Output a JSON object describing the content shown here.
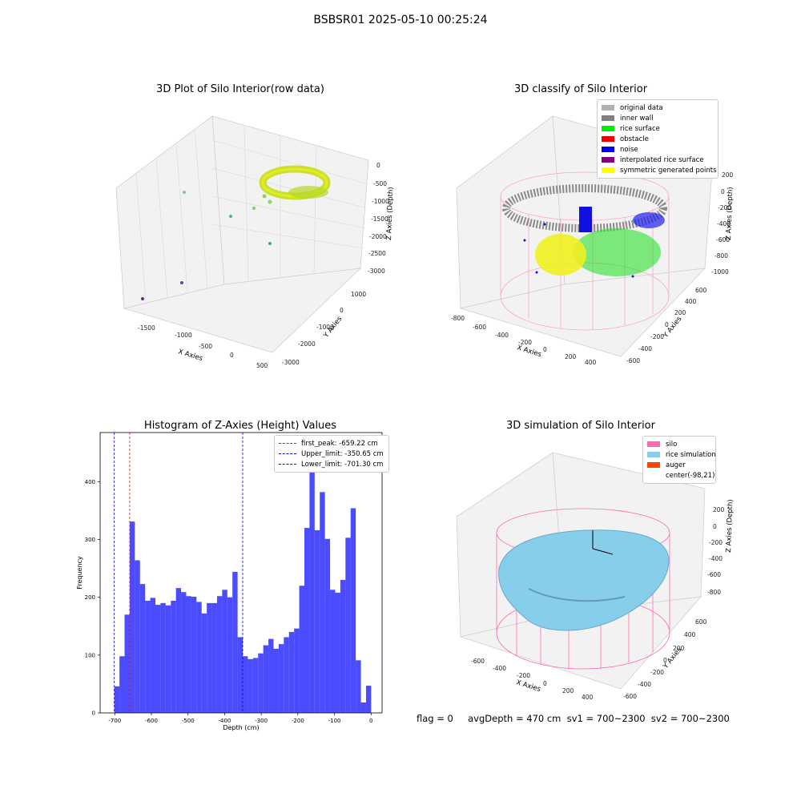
{
  "suptitle": "BSBSR01 2025-05-10 00:25:24",
  "panels": {
    "raw": {
      "title": "3D Plot of Silo Interior(row data)",
      "xlabel": "X Axies",
      "ylabel": "Y Axies",
      "zlabel": "Z Axies (Depth)",
      "xticks": [
        "-1500",
        "-1000",
        "-500",
        "0",
        "500"
      ],
      "yticks": [
        "1000",
        "0",
        "-1000",
        "-2000",
        "-3000"
      ],
      "zticks": [
        "0",
        "-500",
        "-1000",
        "-1500",
        "-2000",
        "-2500",
        "-3000"
      ]
    },
    "classify": {
      "title": "3D classify of Silo Interior",
      "xlabel": "X Axies",
      "ylabel": "Y Axies",
      "zlabel": "Z Axies (Depth)",
      "xticks": [
        "-800",
        "-600",
        "-400",
        "-200",
        "0",
        "200",
        "400"
      ],
      "yticks": [
        "600",
        "400",
        "200",
        "0",
        "-200",
        "-400",
        "-600"
      ],
      "zticks": [
        "200",
        "0",
        "-200",
        "-400",
        "-600",
        "-800",
        "-1000"
      ],
      "legend": [
        {
          "label": "original data",
          "color": "#b0b0b0"
        },
        {
          "label": "inner wall",
          "color": "#808080"
        },
        {
          "label": "rice surface",
          "color": "#00ee00"
        },
        {
          "label": "obstacle",
          "color": "#ee0000"
        },
        {
          "label": "noise",
          "color": "#0000ee"
        },
        {
          "label": "interpolated rice surface",
          "color": "#800080"
        },
        {
          "label": "symmetric generated points",
          "color": "#ffff00"
        }
      ]
    },
    "histogram": {
      "title": "Histogram of Z-Axies (Height) Values",
      "legend": [
        {
          "label": "first_peak: -659.22 cm",
          "color": "#ff0000"
        },
        {
          "label": "Upper_limit: -350.65 cm",
          "color": "#0000cc"
        },
        {
          "label": "Lower_limit: -701.30 cm",
          "color": "#0000cc"
        }
      ]
    },
    "simulation": {
      "title": "3D simulation of Silo Interior",
      "xlabel": "X Axies",
      "ylabel": "Y Axies",
      "zlabel": "Z Axies (Depth)",
      "xticks": [
        "-600",
        "-400",
        "-200",
        "0",
        "200",
        "400"
      ],
      "yticks": [
        "600",
        "400",
        "200",
        "0",
        "-200",
        "-400",
        "-600"
      ],
      "zticks": [
        "200",
        "0",
        "-200",
        "-400",
        "-600",
        "-800"
      ],
      "legend": [
        {
          "label": "silo",
          "color": "#ff69b4"
        },
        {
          "label": "rice simulation",
          "color": "#87ceeb"
        },
        {
          "label": "auger",
          "color": "#ff4500"
        },
        {
          "label": "center(-98,21)",
          "color": ""
        }
      ]
    }
  },
  "footer": "flag = 0     avgDepth = 470 cm  sv1 = 700~2300  sv2 = 700~2300",
  "chart_data": {
    "type": "bar",
    "title": "Histogram of Z-Axies (Height) Values",
    "xlabel": "Depth (cm)",
    "ylabel": "Frequency",
    "xlim": [
      -740,
      30
    ],
    "ylim": [
      0,
      485
    ],
    "xticks": [
      -700,
      -600,
      -500,
      -400,
      -300,
      -200,
      -100,
      0
    ],
    "yticks": [
      0,
      100,
      200,
      300,
      400
    ],
    "bin_start": -701.3,
    "bin_width": 14.03,
    "values": [
      46,
      98,
      170,
      331,
      264,
      223,
      194,
      199,
      187,
      190,
      186,
      194,
      216,
      209,
      202,
      201,
      192,
      172,
      190,
      190,
      202,
      213,
      200,
      244,
      131,
      98,
      93,
      95,
      103,
      117,
      128,
      111,
      119,
      131,
      140,
      146,
      220,
      320,
      460,
      316,
      382,
      301,
      213,
      208,
      230,
      303,
      354,
      91,
      18,
      47
    ],
    "bar_color": "#0000ff",
    "bar_opacity": 0.7,
    "vlines": [
      {
        "value": -659.22,
        "color": "#ff0000"
      },
      {
        "value": -350.65,
        "color": "#0000cc"
      },
      {
        "value": -701.3,
        "color": "#0000cc"
      }
    ]
  }
}
